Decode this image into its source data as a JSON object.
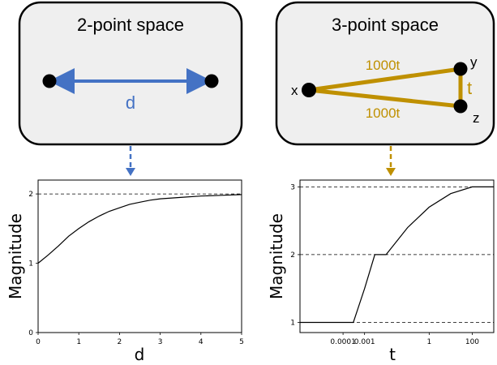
{
  "colors": {
    "blue": "#4472C4",
    "gold": "#BF9000",
    "box_fill": "#EFEFEF",
    "box_stroke": "#000000"
  },
  "left_box": {
    "title": "2-point space",
    "distance_label": "d"
  },
  "right_box": {
    "title": "3-point space",
    "labels": {
      "x": "x",
      "y": "y",
      "z": "z",
      "t": "t",
      "edge_top": "1000t",
      "edge_bottom": "1000t"
    }
  },
  "chart_data": [
    {
      "type": "line",
      "title": "",
      "xlabel": "d",
      "ylabel": "Magnitude",
      "xlim": [
        0,
        5
      ],
      "ylim": [
        0,
        2.2
      ],
      "x_ticks": [
        "0",
        "1",
        "2",
        "3",
        "4",
        "5"
      ],
      "y_ticks": [
        "0",
        "1",
        "2"
      ],
      "reference_lines": [
        2
      ],
      "grid": false,
      "series": [
        {
          "x": [
            0,
            0.25,
            0.5,
            0.75,
            1,
            1.25,
            1.5,
            1.75,
            2,
            2.25,
            2.5,
            2.75,
            3,
            3.5,
            4,
            4.5,
            5
          ],
          "y": [
            1.0,
            1.12,
            1.25,
            1.39,
            1.5,
            1.6,
            1.68,
            1.75,
            1.8,
            1.85,
            1.88,
            1.91,
            1.93,
            1.95,
            1.97,
            1.98,
            1.99
          ]
        }
      ]
    },
    {
      "type": "line",
      "title": "",
      "xlabel": "t",
      "ylabel": "Magnitude",
      "xscale": "log",
      "xlim": [
        1e-06,
        1000
      ],
      "ylim": [
        0.85,
        3.1
      ],
      "x_ticks": [
        "0.0001",
        "0.001",
        "1",
        "100"
      ],
      "x_tick_values": [
        0.0001,
        0.001,
        1,
        100
      ],
      "y_ticks": [
        "1",
        "2",
        "3"
      ],
      "reference_lines": [
        1,
        2,
        3
      ],
      "grid": false,
      "series": [
        {
          "x": [
            1e-06,
            1e-05,
            0.0001,
            0.0003,
            0.001,
            0.003,
            0.01,
            0.1,
            1,
            10,
            100,
            1000
          ],
          "y": [
            1.0,
            1.0,
            1.0,
            1.0,
            1.5,
            2.0,
            2.0,
            2.4,
            2.7,
            2.9,
            3.0,
            3.0
          ]
        }
      ]
    }
  ]
}
